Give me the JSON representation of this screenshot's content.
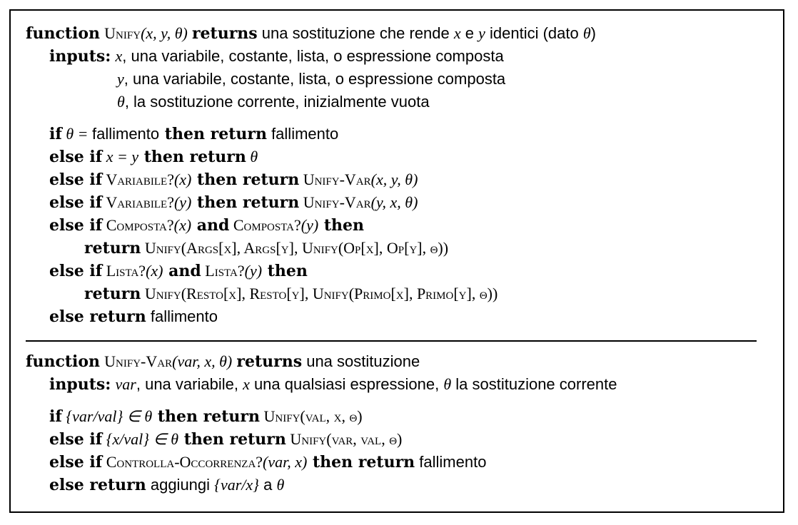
{
  "block1": {
    "header": {
      "kw_function": "function",
      "fname": "Unify",
      "args": "(x, y, θ)",
      "kw_returns": "returns",
      "text_a": " una sostituzione che rende ",
      "x": "x",
      "text_b": " e ",
      "y": "y",
      "text_c": " identici (dato ",
      "theta": "θ",
      "close": ")"
    },
    "inputs": {
      "kw": "inputs:",
      "x_var": "x",
      "x_desc": ", una variabile, costante, lista, o espressione composta",
      "y_var": "y",
      "y_desc": ", una variabile, costante, lista, o espressione composta",
      "t_var": "θ",
      "t_desc": ", la sostituzione corrente, inizialmente vuota"
    },
    "body": {
      "l1_if": "if",
      "l1_cond": " θ = ",
      "l1_fail": "fallimento",
      "l1_then": " then return",
      "l1_ret": " fallimento",
      "l2_kw": "else if",
      "l2_cond": " x = y",
      "l2_then": " then return",
      "l2_ret": " θ",
      "l3_kw": "else if",
      "l3_fn": " Variabile?",
      "l3_arg": "(x)",
      "l3_then": " then return",
      "l3_fn2": " Unify-Var",
      "l3_args": "(x, y, θ)",
      "l4_kw": "else if",
      "l4_fn": " Variabile?",
      "l4_arg": "(y)",
      "l4_then": " then return",
      "l4_fn2": " Unify-Var",
      "l4_args": "(y, x, θ)",
      "l5_kw": "else if",
      "l5_fn": " Composta?",
      "l5_arg": "(x)",
      "l5_and": " and",
      "l5_fn2": " Composta?",
      "l5_arg2": "(y)",
      "l5_then": " then",
      "l6_ret": "return",
      "l6_expr": " Unify(Args[x], Args[y], Unify(Op[x], Op[y], θ))",
      "l7_kw": "else if",
      "l7_fn": " Lista?",
      "l7_arg": "(x)",
      "l7_and": " and",
      "l7_fn2": " Lista?",
      "l7_arg2": "(y)",
      "l7_then": " then",
      "l8_ret": "return",
      "l8_expr": " Unify(Resto[x], Resto[y], Unify(Primo[x], Primo[y], θ))",
      "l9_kw": "else return",
      "l9_val": " fallimento"
    }
  },
  "block2": {
    "header": {
      "kw_function": "function",
      "fname": "Unify-Var",
      "args": "(var, x, θ)",
      "kw_returns": "returns",
      "text": " una sostituzione"
    },
    "inputs": {
      "kw": "inputs:",
      "var": "var",
      "var_desc": ", una variabile, ",
      "x": "x",
      "x_desc": " una qualsiasi espressione, ",
      "theta": "θ",
      "theta_desc": " la sostituzione corrente"
    },
    "body": {
      "l1_if": "if",
      "l1_cond": " {var/val} ∈ θ",
      "l1_then": " then return",
      "l1_ret": " Unify(val, x, θ)",
      "l2_kw": "else if",
      "l2_cond": " {x/val} ∈ θ",
      "l2_then": " then return",
      "l2_ret": " Unify(var, val, θ)",
      "l3_kw": "else if",
      "l3_fn": " Controlla-Occorrenza?",
      "l3_arg": "(var, x)",
      "l3_then": " then return",
      "l3_ret": " fallimento",
      "l4_kw": "else return",
      "l4_text": " aggiungi ",
      "l4_expr": "{var/x}",
      "l4_a": " a ",
      "l4_theta": "θ"
    }
  }
}
